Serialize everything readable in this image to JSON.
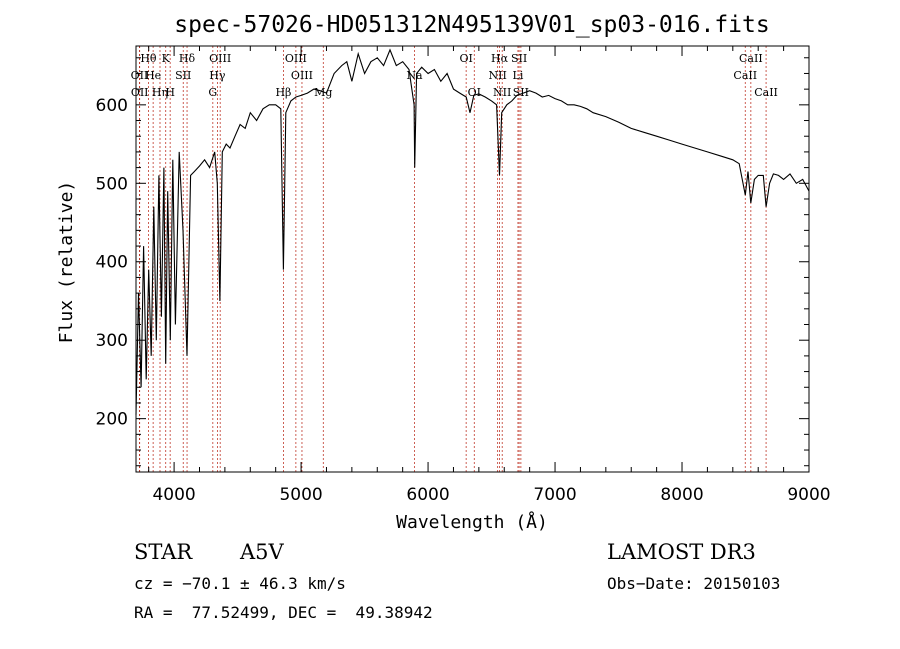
{
  "chart_data": {
    "type": "line",
    "title": "spec-57026-HD051312N495139V01_sp03-016.fits",
    "xlabel": "Wavelength (Å)",
    "ylabel": "Flux (relative)",
    "xlim": [
      3700,
      9000
    ],
    "ylim": [
      132,
      675
    ],
    "xticks": [
      4000,
      5000,
      6000,
      7000,
      8000,
      9000
    ],
    "yticks": [
      200,
      300,
      400,
      500,
      600
    ],
    "grid": false,
    "series": [
      {
        "name": "flux",
        "x": [
          3700,
          3720,
          3740,
          3760,
          3780,
          3800,
          3820,
          3840,
          3860,
          3880,
          3900,
          3920,
          3934,
          3950,
          3970,
          3990,
          4010,
          4040,
          4070,
          4102,
          4130,
          4160,
          4200,
          4240,
          4280,
          4320,
          4340,
          4361,
          4380,
          4410,
          4440,
          4480,
          4520,
          4560,
          4600,
          4650,
          4700,
          4750,
          4800,
          4840,
          4861,
          4880,
          4920,
          4960,
          5000,
          5050,
          5100,
          5150,
          5200,
          5260,
          5320,
          5360,
          5400,
          5450,
          5500,
          5550,
          5600,
          5650,
          5700,
          5750,
          5800,
          5850,
          5890,
          5895,
          5910,
          5950,
          6000,
          6050,
          6100,
          6150,
          6200,
          6250,
          6300,
          6330,
          6360,
          6400,
          6450,
          6500,
          6540,
          6563,
          6580,
          6620,
          6660,
          6700,
          6750,
          6800,
          6850,
          6900,
          6950,
          7000,
          7050,
          7100,
          7150,
          7200,
          7250,
          7300,
          7400,
          7500,
          7600,
          7700,
          7800,
          7900,
          8000,
          8100,
          8200,
          8300,
          8400,
          8450,
          8498,
          8520,
          8542,
          8570,
          8600,
          8640,
          8662,
          8690,
          8720,
          8760,
          8800,
          8850,
          8900,
          8950,
          9000
        ],
        "y": [
          205,
          360,
          240,
          420,
          250,
          390,
          280,
          470,
          300,
          510,
          330,
          520,
          270,
          490,
          300,
          530,
          320,
          540,
          440,
          280,
          510,
          515,
          522,
          530,
          520,
          540,
          500,
          350,
          540,
          550,
          545,
          560,
          575,
          570,
          590,
          580,
          595,
          600,
          600,
          595,
          390,
          590,
          605,
          610,
          612,
          615,
          620,
          618,
          615,
          640,
          650,
          655,
          630,
          665,
          640,
          655,
          660,
          650,
          670,
          650,
          655,
          645,
          600,
          520,
          640,
          648,
          640,
          645,
          630,
          640,
          620,
          615,
          610,
          590,
          612,
          614,
          610,
          605,
          600,
          510,
          590,
          600,
          605,
          612,
          615,
          618,
          615,
          610,
          612,
          608,
          605,
          600,
          600,
          598,
          595,
          590,
          585,
          578,
          570,
          565,
          560,
          555,
          550,
          545,
          540,
          535,
          530,
          525,
          485,
          515,
          475,
          505,
          510,
          510,
          470,
          500,
          512,
          510,
          505,
          512,
          500,
          505,
          490
        ]
      }
    ],
    "lines": [
      {
        "name": "Hθ",
        "x": 3798,
        "row": 1
      },
      {
        "name": "OII",
        "x": 3727,
        "row": 2
      },
      {
        "name": "OII",
        "x": 3729,
        "row": 3
      },
      {
        "name": "He",
        "x": 3835,
        "row": 2
      },
      {
        "name": "Hη",
        "x": 3889,
        "row": 3
      },
      {
        "name": "K",
        "x": 3934,
        "row": 1
      },
      {
        "name": "H",
        "x": 3969,
        "row": 3
      },
      {
        "name": "SII",
        "x": 4072,
        "row": 2
      },
      {
        "name": "Hδ",
        "x": 4102,
        "row": 1
      },
      {
        "name": "OIII",
        "x": 4363,
        "row": 1
      },
      {
        "name": "Hγ",
        "x": 4341,
        "row": 2
      },
      {
        "name": "G",
        "x": 4305,
        "row": 3
      },
      {
        "name": "Hβ",
        "x": 4861,
        "row": 3
      },
      {
        "name": "OIII",
        "x": 4959,
        "row": 1
      },
      {
        "name": "OIII",
        "x": 5007,
        "row": 2
      },
      {
        "name": "Mg",
        "x": 5175,
        "row": 3
      },
      {
        "name": "Na",
        "x": 5893,
        "row": 2
      },
      {
        "name": "OI",
        "x": 6300,
        "row": 1
      },
      {
        "name": "OI",
        "x": 6364,
        "row": 3
      },
      {
        "name": "Hα",
        "x": 6563,
        "row": 1
      },
      {
        "name": "NII",
        "x": 6548,
        "row": 2
      },
      {
        "name": "NII",
        "x": 6584,
        "row": 3
      },
      {
        "name": "SII",
        "x": 6717,
        "row": 1
      },
      {
        "name": "Li",
        "x": 6708,
        "row": 2
      },
      {
        "name": "SII",
        "x": 6731,
        "row": 3
      },
      {
        "name": "CaII",
        "x": 8542,
        "row": 1
      },
      {
        "name": "CaII",
        "x": 8498,
        "row": 2
      },
      {
        "name": "CaII",
        "x": 8662,
        "row": 3
      }
    ]
  },
  "info": {
    "class": "STAR",
    "subclass": "A5V",
    "survey": "LAMOST DR3",
    "cz": "cz = −70.1 ± 46.3 km/s",
    "obsdate": "Obs−Date: 20150103",
    "radec": "RA =  77.52499, DEC =  49.38942"
  },
  "colors": {
    "line_marker": "#c0392b",
    "spectrum": "#000000"
  }
}
